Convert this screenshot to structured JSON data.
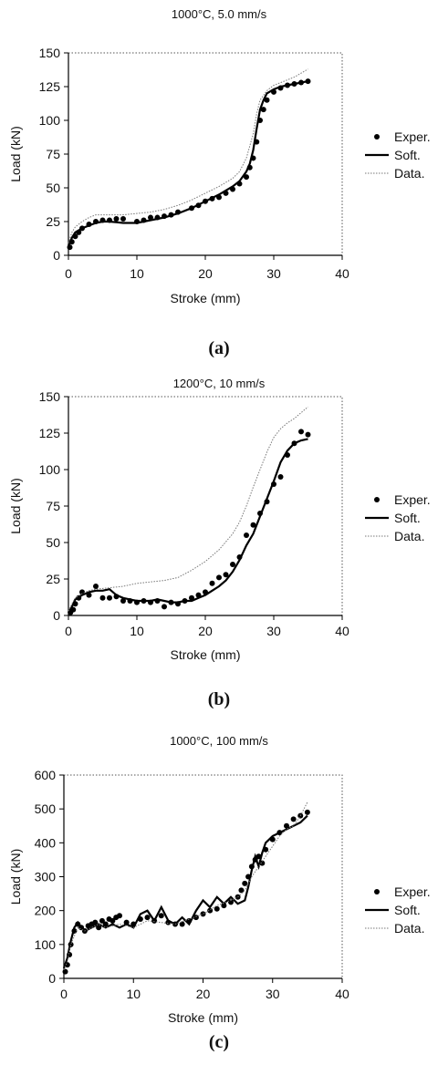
{
  "chart_data": [
    {
      "type": "line",
      "title": "1000°C, 5.0 mm/s",
      "xlabel": "Stroke (mm)",
      "ylabel": "Load (kN)",
      "xlim": [
        0,
        40
      ],
      "ylim": [
        0,
        150
      ],
      "xticks": [
        "0",
        "10",
        "20",
        "30",
        "40"
      ],
      "yticks": [
        "0",
        "25",
        "50",
        "75",
        "100",
        "125",
        "150"
      ],
      "caption": "(a)",
      "legend_position": "right",
      "series": [
        {
          "name": "Exper.",
          "style": "markers",
          "x": [
            0.2,
            0.5,
            1,
            1.5,
            2,
            3,
            4,
            5,
            6,
            7,
            8,
            10,
            11,
            12,
            13,
            14,
            15,
            16,
            18,
            19,
            20,
            21,
            22,
            23,
            24,
            25,
            26,
            26.5,
            27,
            27.5,
            28,
            28.5,
            29,
            30,
            31,
            32,
            33,
            34,
            35
          ],
          "y": [
            6,
            10,
            14,
            17,
            20,
            23,
            25,
            26,
            26,
            27,
            27,
            25,
            26,
            28,
            28,
            29,
            30,
            32,
            35,
            37,
            40,
            42,
            43,
            46,
            49,
            53,
            58,
            65,
            72,
            84,
            100,
            108,
            115,
            121,
            124,
            126,
            127,
            128,
            129
          ]
        },
        {
          "name": "Soft.",
          "style": "solid",
          "x": [
            0,
            0.5,
            1,
            2,
            3,
            4,
            5,
            6,
            8,
            10,
            12,
            14,
            16,
            18,
            20,
            22,
            24,
            25,
            26,
            26.5,
            27,
            27.5,
            28,
            28.5,
            29,
            30,
            31,
            32,
            33,
            34,
            35
          ],
          "y": [
            7,
            13,
            17,
            20,
            22,
            24,
            25,
            25,
            24,
            24,
            26,
            28,
            31,
            35,
            40,
            45,
            51,
            55,
            62,
            68,
            78,
            94,
            108,
            115,
            120,
            123,
            125,
            126,
            127,
            128,
            129
          ]
        },
        {
          "name": "Data.",
          "style": "dotted",
          "x": [
            0,
            0.5,
            1,
            2,
            3,
            4,
            5,
            6,
            8,
            10,
            12,
            14,
            16,
            18,
            20,
            22,
            24,
            25,
            26,
            27,
            27.5,
            28,
            29,
            30,
            31,
            32,
            33,
            34,
            35
          ],
          "y": [
            9,
            17,
            21,
            25,
            28,
            30,
            30,
            30,
            30,
            31,
            32,
            34,
            37,
            41,
            46,
            51,
            57,
            62,
            72,
            90,
            105,
            115,
            122,
            126,
            128,
            130,
            132,
            135,
            138
          ]
        }
      ]
    },
    {
      "type": "line",
      "title": "1200°C, 10 mm/s",
      "xlabel": "Stroke (mm)",
      "ylabel": "Load (kN)",
      "xlim": [
        0,
        40
      ],
      "ylim": [
        0,
        150
      ],
      "xticks": [
        "0",
        "10",
        "20",
        "30",
        "40"
      ],
      "yticks": [
        "0",
        "25",
        "50",
        "75",
        "100",
        "125",
        "150"
      ],
      "caption": "(b)",
      "legend_position": "right",
      "series": [
        {
          "name": "Exper.",
          "style": "markers",
          "x": [
            0.3,
            0.7,
            1,
            1.5,
            2,
            3,
            4,
            5,
            6,
            7,
            8,
            9,
            10,
            11,
            12,
            13,
            14,
            15,
            16,
            17,
            18,
            19,
            20,
            21,
            22,
            23,
            24,
            25,
            26,
            27,
            28,
            29,
            30,
            31,
            32,
            33,
            34,
            35
          ],
          "y": [
            2,
            4,
            8,
            12,
            16,
            14,
            20,
            12,
            12,
            13,
            10,
            10,
            9,
            10,
            9,
            10,
            6,
            9,
            8,
            10,
            12,
            14,
            16,
            22,
            26,
            28,
            35,
            40,
            55,
            62,
            70,
            78,
            90,
            95,
            110,
            118,
            126,
            124
          ]
        },
        {
          "name": "Soft.",
          "style": "solid",
          "x": [
            0,
            0.5,
            1,
            2,
            3,
            4,
            5,
            6,
            7,
            8,
            9,
            10,
            11,
            12,
            13,
            14,
            15,
            16,
            17,
            18,
            19,
            20,
            21,
            22,
            23,
            24,
            25,
            26,
            27,
            28,
            29,
            30,
            31,
            32,
            33,
            34,
            35
          ],
          "y": [
            2,
            6,
            11,
            14,
            16,
            17,
            17,
            18,
            14,
            12,
            11,
            10,
            10,
            10,
            11,
            10,
            9,
            9,
            10,
            10,
            12,
            14,
            17,
            20,
            24,
            30,
            38,
            48,
            56,
            68,
            80,
            92,
            105,
            113,
            118,
            120,
            121
          ]
        },
        {
          "name": "Data.",
          "style": "dotted",
          "x": [
            0,
            0.5,
            1,
            2,
            3,
            4,
            6,
            8,
            10,
            12,
            14,
            16,
            18,
            20,
            22,
            24,
            25,
            26,
            27,
            28,
            29,
            30,
            31,
            32,
            33,
            34,
            35
          ],
          "y": [
            3,
            8,
            12,
            15,
            17,
            18,
            19,
            20,
            22,
            23,
            24,
            26,
            31,
            37,
            45,
            56,
            64,
            75,
            88,
            100,
            112,
            122,
            128,
            132,
            135,
            139,
            143
          ]
        }
      ]
    },
    {
      "type": "line",
      "title": "1000°C, 100 mm/s",
      "xlabel": "Stroke (mm)",
      "ylabel": "Load (kN)",
      "xlim": [
        0,
        40
      ],
      "ylim": [
        0,
        600
      ],
      "xticks": [
        "0",
        "10",
        "20",
        "30",
        "40"
      ],
      "yticks": [
        "0",
        "100",
        "200",
        "300",
        "400",
        "500",
        "600"
      ],
      "caption": "(c)",
      "legend_position": "right",
      "series": [
        {
          "name": "Exper.",
          "style": "markers",
          "x": [
            0.2,
            0.5,
            0.8,
            1,
            1.5,
            2,
            2.5,
            3,
            3.5,
            4,
            4.5,
            5,
            5.5,
            6,
            6.5,
            7,
            7.5,
            8,
            9,
            10,
            11,
            12,
            13,
            14,
            15,
            16,
            17,
            18,
            19,
            20,
            21,
            22,
            23,
            24,
            25,
            25.5,
            26,
            26.5,
            27,
            27.5,
            28,
            28.5,
            29,
            30,
            31,
            32,
            33,
            34,
            35
          ],
          "y": [
            20,
            40,
            70,
            100,
            140,
            160,
            150,
            140,
            155,
            160,
            165,
            150,
            170,
            160,
            175,
            170,
            180,
            185,
            165,
            160,
            175,
            180,
            170,
            185,
            165,
            160,
            160,
            170,
            180,
            190,
            200,
            205,
            215,
            225,
            240,
            260,
            280,
            300,
            330,
            350,
            360,
            340,
            380,
            410,
            430,
            450,
            470,
            480,
            490
          ]
        },
        {
          "name": "Soft.",
          "style": "solid",
          "x": [
            0,
            0.5,
            1,
            1.5,
            2,
            2.5,
            3,
            4,
            5,
            6,
            7,
            8,
            9,
            10,
            11,
            12,
            13,
            14,
            15,
            16,
            17,
            18,
            19,
            20,
            21,
            22,
            23,
            24,
            25,
            26,
            26.5,
            27,
            27.5,
            28,
            28.5,
            29,
            30,
            31,
            32,
            33,
            34,
            35
          ],
          "y": [
            30,
            60,
            110,
            150,
            165,
            150,
            140,
            150,
            160,
            150,
            160,
            150,
            160,
            150,
            190,
            200,
            170,
            210,
            170,
            160,
            180,
            160,
            200,
            230,
            210,
            240,
            220,
            240,
            220,
            230,
            270,
            320,
            360,
            330,
            370,
            400,
            420,
            430,
            440,
            450,
            460,
            480
          ]
        },
        {
          "name": "Data.",
          "style": "dotted",
          "x": [
            0,
            0.5,
            1,
            2,
            3,
            4,
            5,
            6,
            8,
            10,
            12,
            14,
            16,
            18,
            20,
            22,
            24,
            25,
            26,
            27,
            28,
            29,
            30,
            31,
            32,
            33,
            34,
            35
          ],
          "y": [
            25,
            50,
            100,
            150,
            140,
            150,
            160,
            150,
            160,
            150,
            170,
            165,
            160,
            175,
            190,
            215,
            230,
            240,
            260,
            300,
            330,
            360,
            390,
            420,
            440,
            450,
            480,
            520
          ]
        }
      ]
    }
  ]
}
